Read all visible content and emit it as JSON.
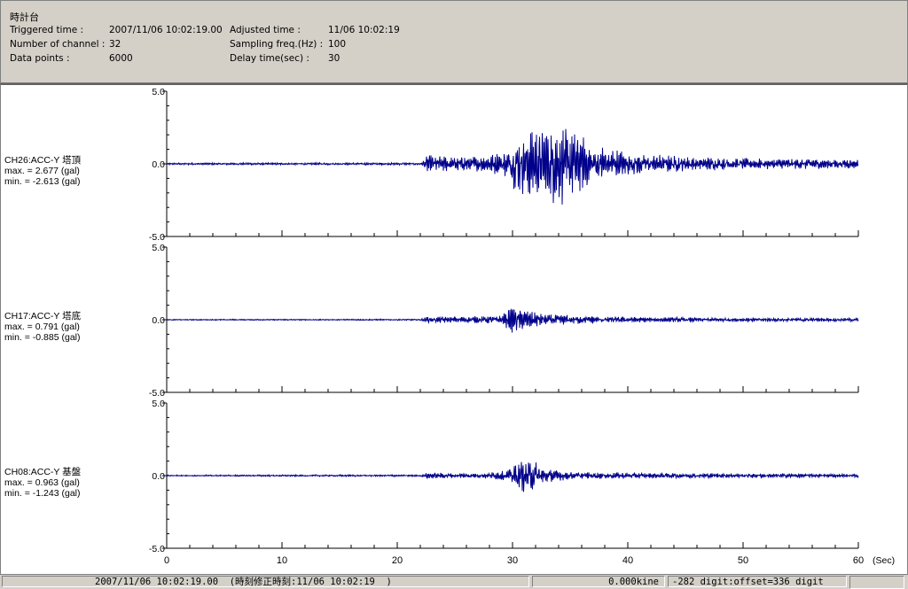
{
  "header": {
    "title": "時計台",
    "fields": [
      {
        "label": "Triggered time :",
        "value": "2007/11/06 10:02:19.00"
      },
      {
        "label": "Number of channel :",
        "value": "32"
      },
      {
        "label": "Data points :",
        "value": "6000"
      },
      {
        "label": "Adjusted time :",
        "value": "11/06 10:02:19"
      },
      {
        "label": "Sampling freq.(Hz) :",
        "value": "100"
      },
      {
        "label": "Delay time(sec) :",
        "value": "30"
      }
    ]
  },
  "chart_data": {
    "type": "line",
    "x_unit_label": "(Sec)",
    "xlim": [
      0,
      60
    ],
    "x_ticks": [
      "0",
      "10",
      "20",
      "30",
      "40",
      "50",
      "60"
    ],
    "series": [
      {
        "name": "CH26:ACC-Y 塔頂",
        "max_text": "max. = 2.677 (gal)",
        "min_text": "min. = -2.613 (gal)",
        "max": 2.677,
        "min": -2.613,
        "ylim": [
          -5,
          5
        ],
        "y_ticks": [
          "5.0",
          "0.0",
          "-5.0"
        ],
        "color": "#00008b",
        "envelope": [
          [
            0,
            0.06
          ],
          [
            22,
            0.07
          ],
          [
            22.6,
            0.55
          ],
          [
            25,
            0.45
          ],
          [
            28,
            0.5
          ],
          [
            29.5,
            0.9
          ],
          [
            30.5,
            1.9
          ],
          [
            32,
            2.1
          ],
          [
            34,
            2.6
          ],
          [
            35,
            2.2
          ],
          [
            37,
            1.3
          ],
          [
            40,
            0.7
          ],
          [
            45,
            0.45
          ],
          [
            50,
            0.35
          ],
          [
            60,
            0.3
          ]
        ]
      },
      {
        "name": "CH17:ACC-Y 塔底",
        "max_text": "max. = 0.791 (gal)",
        "min_text": "min. = -0.885 (gal)",
        "max": 0.791,
        "min": -0.885,
        "ylim": [
          -5,
          5
        ],
        "y_ticks": [
          "5.0",
          "0.0",
          "-5.0"
        ],
        "color": "#00008b",
        "envelope": [
          [
            0,
            0.03
          ],
          [
            22,
            0.04
          ],
          [
            22.6,
            0.2
          ],
          [
            26,
            0.2
          ],
          [
            29,
            0.25
          ],
          [
            30,
            0.8
          ],
          [
            31,
            0.6
          ],
          [
            33,
            0.35
          ],
          [
            36,
            0.25
          ],
          [
            42,
            0.15
          ],
          [
            60,
            0.1
          ]
        ]
      },
      {
        "name": "CH08:ACC-Y 基盤",
        "max_text": "max. = 0.963 (gal)",
        "min_text": "min. = -1.243 (gal)",
        "max": 0.963,
        "min": -1.243,
        "ylim": [
          -5,
          5
        ],
        "y_ticks": [
          "5.0",
          "0.0",
          "-5.0"
        ],
        "color": "#00008b",
        "envelope": [
          [
            0,
            0.04
          ],
          [
            22,
            0.06
          ],
          [
            22.6,
            0.18
          ],
          [
            27,
            0.15
          ],
          [
            29.5,
            0.3
          ],
          [
            30.5,
            0.95
          ],
          [
            31.5,
            1.1
          ],
          [
            33,
            0.4
          ],
          [
            36,
            0.2
          ],
          [
            60,
            0.1
          ]
        ]
      }
    ],
    "grid": false
  },
  "status": {
    "time": "2007/11/06 10:02:19.00  (時刻修正時刻:11/06 10:02:19  )",
    "kine": "0.000kine",
    "digit": "-282 digit:offset=336 digit"
  }
}
